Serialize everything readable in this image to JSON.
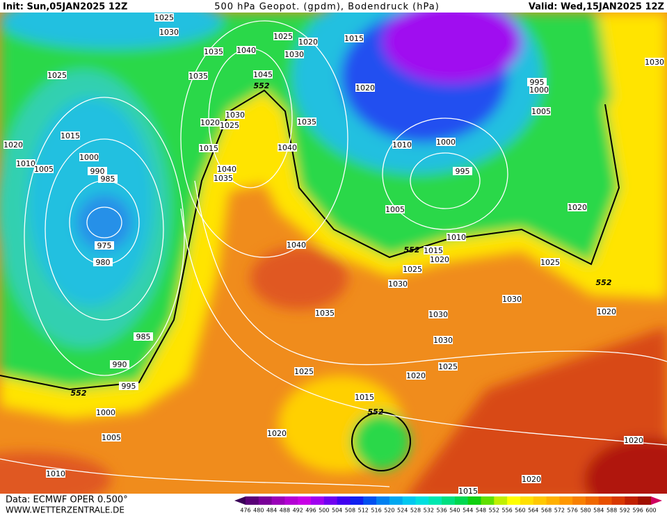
{
  "header": {
    "init": "Init: Sun,05JAN2025 12Z",
    "title": "500 hPa Geopot. (gpdm), Bodendruck (hPa)",
    "valid": "Valid: Wed,15JAN2025 12Z"
  },
  "footer": {
    "source": "Data: ECMWF OPER 0.500°",
    "site": "WWW.WETTERZENTRALE.DE"
  },
  "isobar_labels": [
    "1025",
    "1030",
    "1035",
    "1035",
    "1040",
    "1045",
    "1025",
    "1020",
    "1030",
    "1015",
    "1020",
    "1025",
    "1015",
    "1020",
    "1010",
    "1005",
    "1000",
    "990",
    "985",
    "975",
    "980",
    "985",
    "990",
    "995",
    "1000",
    "1005",
    "1010",
    "1030",
    "1025",
    "1020",
    "1015",
    "1040",
    "1035",
    "1035",
    "1040",
    "1040",
    "1035",
    "1025",
    "1015",
    "1020",
    "1010",
    "1000",
    "995",
    "1005",
    "1015",
    "1010",
    "1020",
    "1025",
    "1030",
    "1030",
    "1030",
    "1030",
    "1025",
    "1020",
    "995",
    "1000",
    "1005",
    "1020",
    "1025",
    "1020",
    "1020",
    "1020",
    "1015",
    "1030"
  ],
  "contour_labels": [
    "552",
    "552",
    "552",
    "552",
    "552"
  ],
  "colorbar": {
    "labels": [
      "476",
      "480",
      "484",
      "488",
      "492",
      "496",
      "500",
      "504",
      "508",
      "512",
      "516",
      "520",
      "524",
      "528",
      "532",
      "536",
      "540",
      "544",
      "548",
      "552",
      "556",
      "560",
      "564",
      "568",
      "572",
      "576",
      "580",
      "584",
      "588",
      "592",
      "596",
      "600"
    ],
    "colors": [
      "#3a0058",
      "#5a0078",
      "#7a0098",
      "#9a00b8",
      "#b400d4",
      "#c800e6",
      "#a000f0",
      "#7000f0",
      "#4000f0",
      "#1020f0",
      "#0050f0",
      "#0080f0",
      "#00a8f0",
      "#00c8f0",
      "#00e0e0",
      "#00e8b0",
      "#00e080",
      "#00d850",
      "#10d010",
      "#60e000",
      "#c0f000",
      "#ffff00",
      "#ffe000",
      "#ffc800",
      "#ffb000",
      "#ff9800",
      "#f88000",
      "#f06800",
      "#e85000",
      "#d83800",
      "#c02000",
      "#a01000",
      "#d00060"
    ]
  }
}
